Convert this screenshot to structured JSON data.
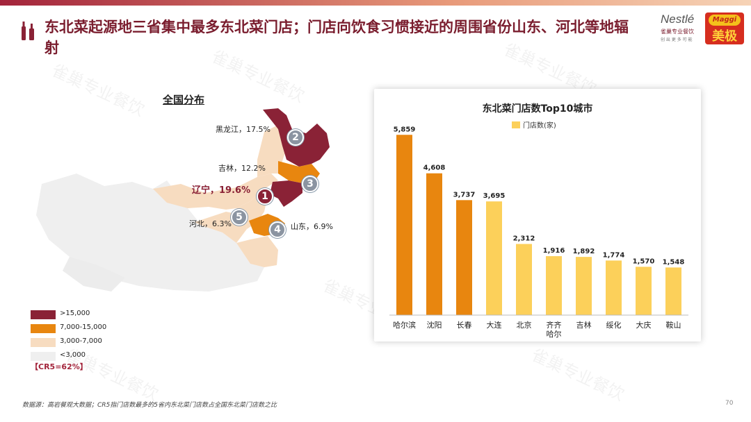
{
  "slide": {
    "title": "东北菜起源地三省集中最多东北菜门店；门店向饮食习惯接近的周围省份山东、河北等地辐射",
    "footer": "数据源：高岩餐观大数据；CR5指门店数最多的5省内东北菜门店数占全国东北菜门店数之比",
    "page_number": "70",
    "watermark": "雀巢专业餐饮"
  },
  "logos": {
    "nestle": "Nestlé",
    "nestle_sub": "雀巢专业餐饮",
    "nestle_sub2": "创 出 更 多 可 能",
    "maggi": "Maggi",
    "maggi_cn": "美极"
  },
  "map": {
    "title": "全国分布",
    "labels": {
      "heilongjiang": "黑龙江，17.5%",
      "jilin": "吉林，12.2%",
      "liaoning": "辽宁，19.6%",
      "hebei": "河北，6.3%",
      "shandong": "山东，6.9%"
    },
    "ranks": {
      "liaoning": "1",
      "heilongjiang": "2",
      "jilin": "3",
      "shandong": "4",
      "hebei": "5"
    },
    "legend": [
      {
        "label": ">15,000",
        "color": "#8a2236"
      },
      {
        "label": "7,000-15,000",
        "color": "#e8860f"
      },
      {
        "label": "3,000-7,000",
        "color": "#f7dcc0"
      },
      {
        "label": "<3,000",
        "color": "#efefef"
      }
    ],
    "cr5": "【CR5=62%】"
  },
  "chart_data": {
    "type": "bar",
    "title": "东北菜门店数Top10城市",
    "legend": "门店数(家)",
    "categories": [
      "哈尔滨",
      "沈阳",
      "长春",
      "大连",
      "北京",
      "齐齐\n哈尔",
      "吉林",
      "绥化",
      "大庆",
      "鞍山"
    ],
    "values": [
      5859,
      4608,
      3737,
      3695,
      2312,
      1916,
      1892,
      1774,
      1570,
      1548
    ],
    "value_labels": [
      "5,859",
      "4,608",
      "3,737",
      "3,695",
      "2,312",
      "1,916",
      "1,892",
      "1,774",
      "1,570",
      "1,548"
    ],
    "colors": [
      "#e8860f",
      "#e8860f",
      "#e8860f",
      "#fcd05a",
      "#fcd05a",
      "#fcd05a",
      "#fcd05a",
      "#fcd05a",
      "#fcd05a",
      "#fcd05a"
    ],
    "legend_color": "#fcd05a",
    "ylim": [
      0,
      6000
    ],
    "grid": false
  }
}
